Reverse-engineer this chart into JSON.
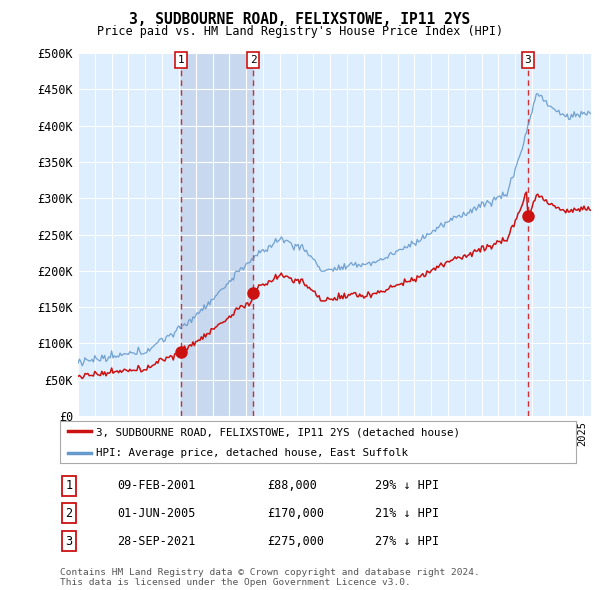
{
  "title1": "3, SUDBOURNE ROAD, FELIXSTOWE, IP11 2YS",
  "title2": "Price paid vs. HM Land Registry's House Price Index (HPI)",
  "ylabel_ticks": [
    "£0",
    "£50K",
    "£100K",
    "£150K",
    "£200K",
    "£250K",
    "£300K",
    "£350K",
    "£400K",
    "£450K",
    "£500K"
  ],
  "ytick_values": [
    0,
    50000,
    100000,
    150000,
    200000,
    250000,
    300000,
    350000,
    400000,
    450000,
    500000
  ],
  "ylim": [
    0,
    500000
  ],
  "xlim_start": 1995.0,
  "xlim_end": 2025.5,
  "background_color": "#ffffff",
  "plot_bg_color": "#ddeeff",
  "highlight_bg_color": "#c8d8ee",
  "grid_color": "#ffffff",
  "hpi_line_color": "#6699cc",
  "price_line_color": "#cc1111",
  "sale_marker_color": "#cc1111",
  "vline_color": "#cc1111",
  "footer_text": "Contains HM Land Registry data © Crown copyright and database right 2024.\nThis data is licensed under the Open Government Licence v3.0.",
  "legend_entry1": "3, SUDBOURNE ROAD, FELIXSTOWE, IP11 2YS (detached house)",
  "legend_entry2": "HPI: Average price, detached house, East Suffolk",
  "transactions": [
    {
      "num": 1,
      "date": "09-FEB-2001",
      "x": 2001.11,
      "price": 88000
    },
    {
      "num": 2,
      "date": "01-JUN-2005",
      "x": 2005.42,
      "price": 170000
    },
    {
      "num": 3,
      "date": "28-SEP-2021",
      "x": 2021.75,
      "price": 275000
    }
  ],
  "table_rows": [
    {
      "num": "1",
      "date": "09-FEB-2001",
      "price": "£88,000",
      "pct": "29% ↓ HPI"
    },
    {
      "num": "2",
      "date": "01-JUN-2005",
      "price": "£170,000",
      "pct": "21% ↓ HPI"
    },
    {
      "num": "3",
      "date": "28-SEP-2021",
      "price": "£275,000",
      "pct": "27% ↓ HPI"
    }
  ]
}
